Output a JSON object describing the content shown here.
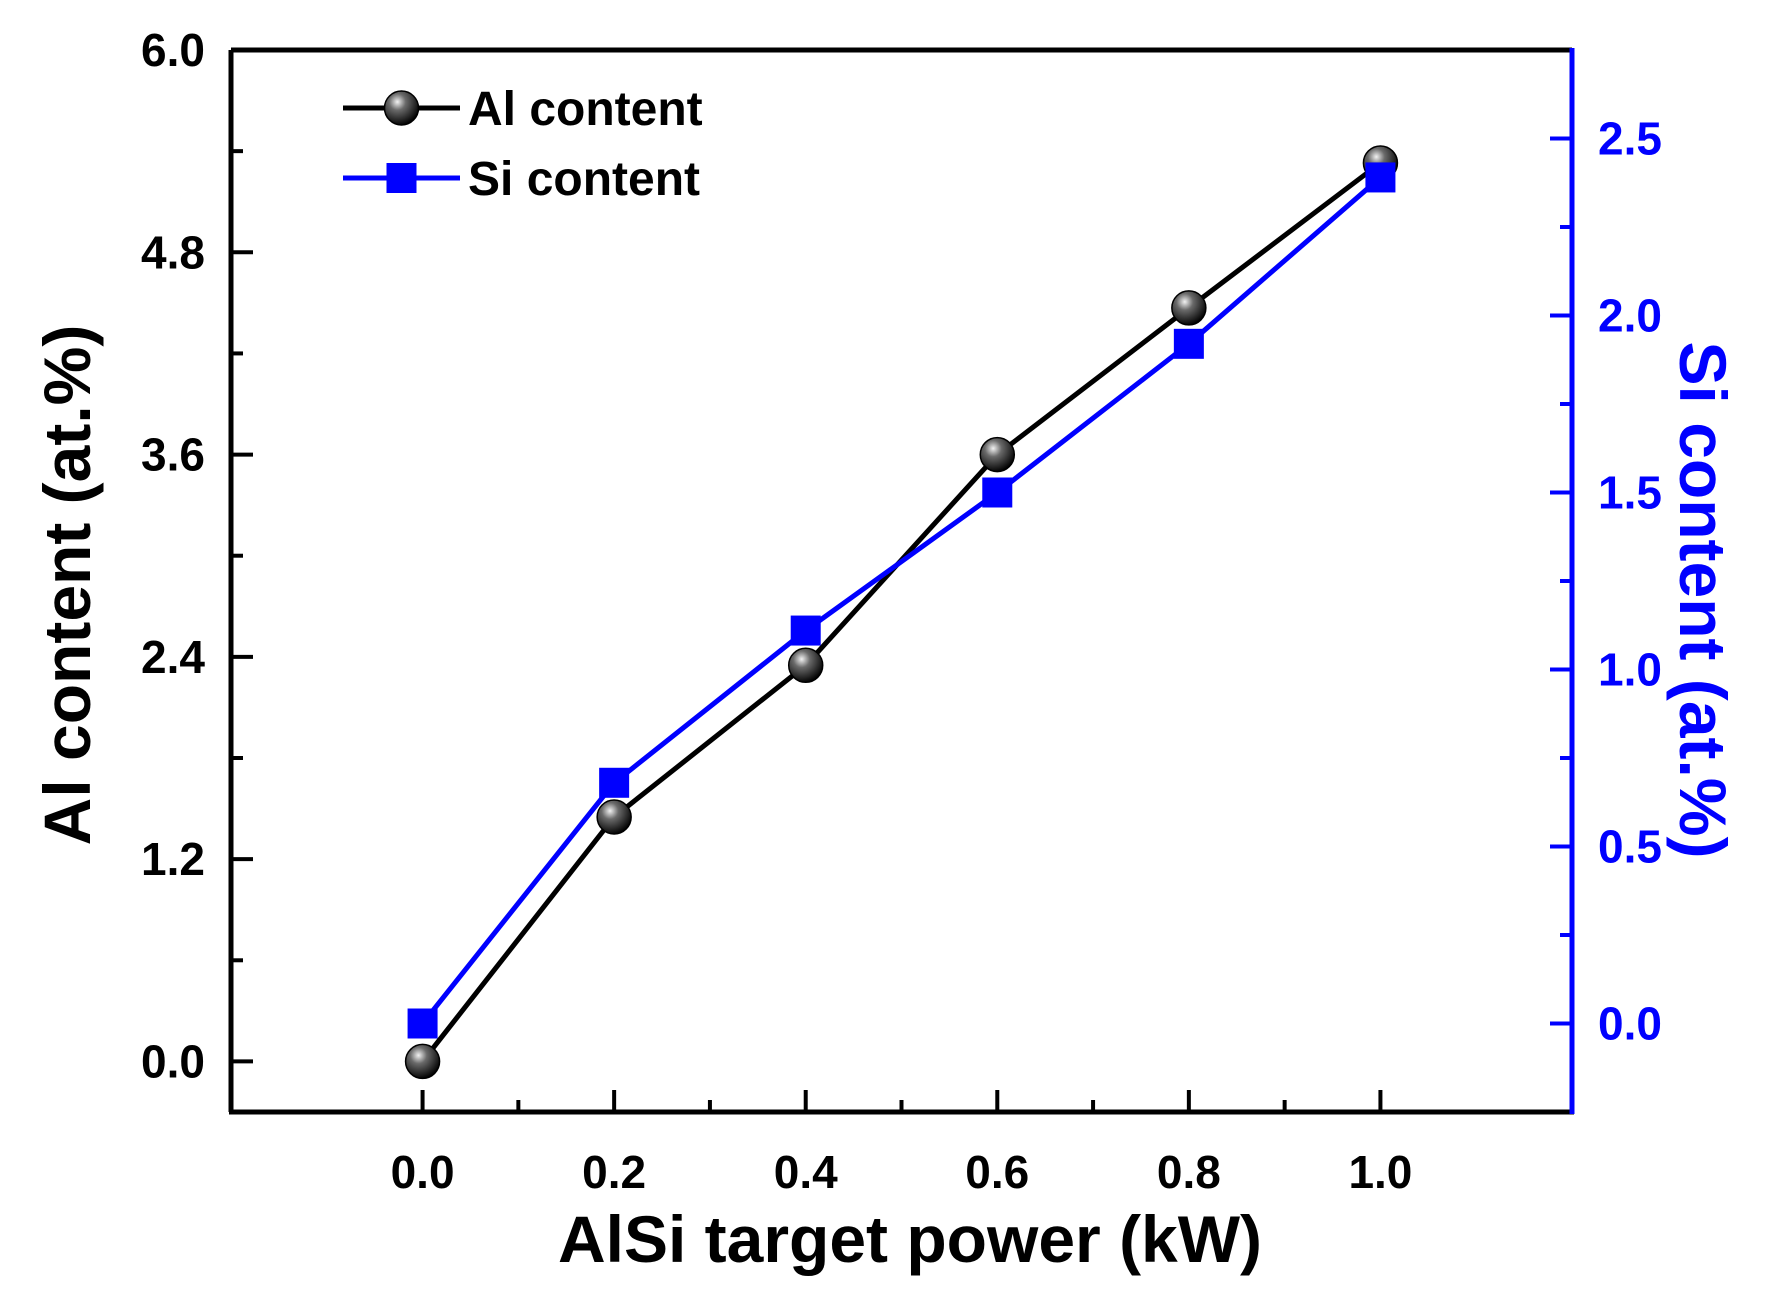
{
  "chart_data": {
    "type": "line",
    "xlabel": "AlSi target power (kW)",
    "ylabel": "Al content (at.%)",
    "y2label": "Si content (at.%)",
    "x": [
      0.0,
      0.2,
      0.4,
      0.6,
      0.8,
      1.0
    ],
    "x_ticks": [
      "0.0",
      "0.2",
      "0.4",
      "0.6",
      "0.8",
      "1.0"
    ],
    "xlim": [
      -0.2,
      1.2
    ],
    "ylim": [
      -0.3,
      6.0
    ],
    "y_ticks": [
      "0.0",
      "1.2",
      "2.4",
      "3.6",
      "4.8",
      "6.0"
    ],
    "y2lim": [
      -0.25,
      2.75
    ],
    "y2_ticks": [
      "0.0",
      "0.5",
      "1.0",
      "1.5",
      "2.0",
      "2.5"
    ],
    "series": [
      {
        "name": "Al content",
        "axis": "left",
        "color": "#000000",
        "marker": "sphere",
        "values": [
          0.0,
          1.45,
          2.35,
          3.6,
          4.47,
          5.33
        ]
      },
      {
        "name": "Si content",
        "axis": "right",
        "color": "#0000ff",
        "marker": "square",
        "values": [
          0.0,
          0.68,
          1.11,
          1.5,
          1.92,
          2.39
        ]
      }
    ],
    "legend": "top-left",
    "grid": false
  }
}
